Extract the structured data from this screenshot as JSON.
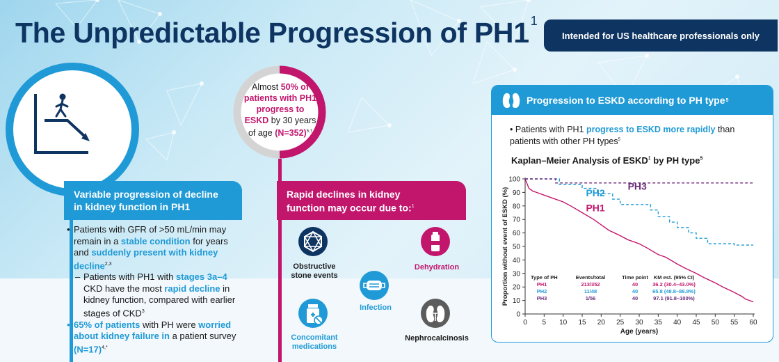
{
  "header": {
    "title": "The Unpredictable Progression of PH1",
    "title_ref": "1",
    "badge": "Intended for US healthcare professionals only"
  },
  "left": {
    "heading_line1": "Variable progression of decline",
    "heading_line2": "in kidney function in PH1",
    "b1_a": "Patients with GFR of >50 mL/min may remain in a ",
    "b1_b": "stable condition",
    "b1_c": " for years and ",
    "b1_d": "suddenly present with kidney decline",
    "b1_ref": "2,3",
    "b2_a": "Patients with PH1 with ",
    "b2_b": "stages 3a–4",
    "b2_c": " CKD have the most ",
    "b2_d": "rapid decline",
    "b2_e": " in kidney function, compared with earlier stages of CKD",
    "b2_ref": "3",
    "b3_a": "65% of patients",
    "b3_b": " with PH were ",
    "b3_c": "worried about kidney failure in",
    "b3_d": " a patient survey ",
    "b3_e": "(N=17)",
    "b3_ref": "4,*"
  },
  "middle": {
    "circle_pct": 50,
    "circle_l1": "Almost ",
    "circle_l1b": "50% of patients with PH1 progress to ESKD",
    "circle_l2": " by 30 years of age ",
    "circle_l3": "(N=352)",
    "circle_ref": "5,†",
    "heading_line1": "Rapid declines in kidney",
    "heading_line2": "function may occur due to:",
    "heading_ref": "1",
    "items": [
      {
        "label": "Obstructive stone events",
        "icon": "stone-icon"
      },
      {
        "label": "Infection",
        "icon": "mask-icon"
      },
      {
        "label": "Dehydration",
        "icon": "water-bottle-icon"
      },
      {
        "label": "Concomitant medications",
        "icon": "medication-bottle-icon"
      },
      {
        "label": "Nephrocalcinosis",
        "icon": "kidney-icon"
      }
    ]
  },
  "panel": {
    "heading": "Progression to ESKD according to PH type",
    "heading_ref": "5",
    "bullet_a": "Patients with PH1 ",
    "bullet_b": "progress to ESKD more rapidly",
    "bullet_c": " than patients with other PH types",
    "bullet_ref": "5",
    "chart_title": "Kaplan–Meier Analysis of ESKD",
    "chart_title_ref1": "‡",
    "chart_title_b": " by PH type",
    "chart_title_ref2": "5"
  },
  "colors": {
    "navy": "#0e3461",
    "blue": "#1f9ad6",
    "magenta": "#c2166d",
    "purple": "#6b2a7b",
    "gray": "#d4d4d4"
  },
  "chart_data": {
    "type": "line",
    "title": "Kaplan–Meier Analysis of ESKD‡ by PH type",
    "xlabel": "Age (years)",
    "ylabel": "Proportion without event of ESKD (%)",
    "xlim": [
      0,
      60
    ],
    "ylim": [
      0,
      100
    ],
    "xticks": [
      0,
      5,
      10,
      15,
      20,
      25,
      30,
      35,
      40,
      45,
      50,
      55,
      60
    ],
    "yticks": [
      0,
      10,
      20,
      30,
      40,
      50,
      60,
      70,
      80,
      90,
      100
    ],
    "series": [
      {
        "name": "PH1",
        "color": "#c2166d",
        "style": "solid",
        "x": [
          0,
          1,
          2,
          3,
          5,
          7,
          10,
          12,
          15,
          18,
          20,
          22,
          25,
          27,
          30,
          32,
          35,
          37,
          40,
          42,
          45,
          47,
          50,
          52,
          55,
          57,
          58,
          59,
          60
        ],
        "y": [
          100,
          93,
          91,
          90,
          88,
          86,
          83,
          80,
          75,
          70,
          66,
          62,
          58,
          55,
          52,
          49,
          44,
          42,
          37,
          34,
          30,
          27,
          23,
          20,
          16,
          13,
          11,
          10,
          9
        ]
      },
      {
        "name": "PH2",
        "color": "#1f9ad6",
        "style": "dashed",
        "x": [
          0,
          9,
          9,
          15,
          15,
          19,
          19,
          23,
          23,
          25,
          25,
          33,
          33,
          35,
          35,
          38,
          38,
          40,
          40,
          43,
          43,
          45,
          45,
          48,
          48,
          55,
          55,
          60
        ],
        "y": [
          100,
          100,
          96,
          96,
          93,
          93,
          89,
          89,
          85,
          85,
          81,
          81,
          77,
          77,
          72,
          72,
          68,
          68,
          64,
          64,
          60,
          60,
          56,
          56,
          52,
          52,
          51,
          51
        ]
      },
      {
        "name": "PH3",
        "color": "#6b2a7b",
        "style": "dashed",
        "x": [
          0,
          8,
          8,
          60
        ],
        "y": [
          100,
          100,
          97,
          97
        ]
      }
    ],
    "table": {
      "headers": [
        "Type of PH",
        "Events/total",
        "Time point",
        "KM est. (95% CI)"
      ],
      "rows": [
        [
          "PH1",
          "213/352",
          "40",
          "36.2 (30.4–43.0%)"
        ],
        [
          "PH2",
          "11/48",
          "40",
          "65.8 (48.8–88.8%)"
        ],
        [
          "PH3",
          "1/56",
          "40",
          "97.1 (91.8–100%)"
        ]
      ]
    }
  }
}
